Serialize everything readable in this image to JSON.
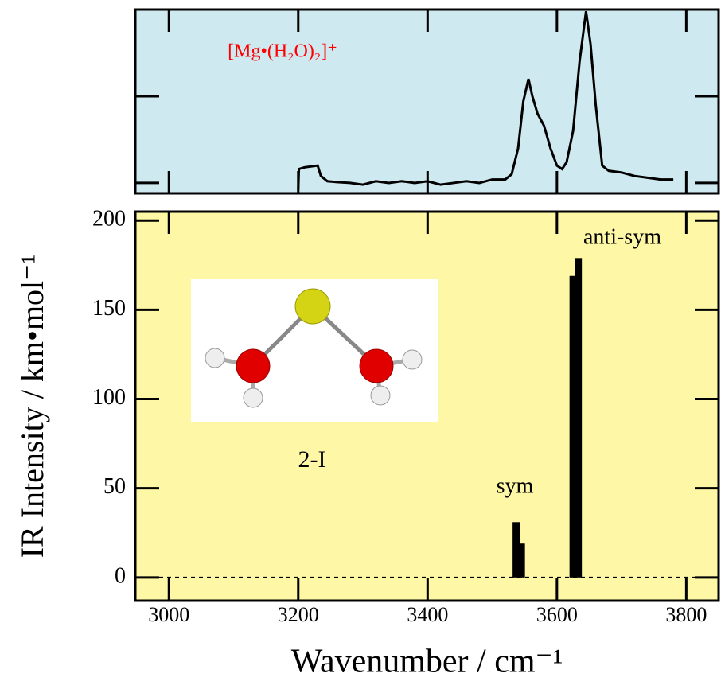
{
  "chart_data": [
    {
      "type": "line",
      "annotation": "[Mg•(H₂O)₂]⁺",
      "annotation_color": "#ff0000",
      "background": "#cfe9f0",
      "x": [
        3200,
        3201,
        3210,
        3230,
        3235,
        3245,
        3260,
        3280,
        3300,
        3320,
        3340,
        3360,
        3380,
        3400,
        3420,
        3440,
        3460,
        3480,
        3500,
        3520,
        3530,
        3540,
        3548,
        3556,
        3562,
        3570,
        3580,
        3590,
        3600,
        3608,
        3615,
        3625,
        3635,
        3645,
        3652,
        3660,
        3670,
        3680,
        3700,
        3720,
        3740,
        3760,
        3780
      ],
      "values": [
        -0.04,
        0.08,
        0.09,
        0.1,
        0.04,
        0.01,
        0.005,
        0.0,
        -0.01,
        0.01,
        0.0,
        0.01,
        0.0,
        0.01,
        -0.01,
        0.0,
        0.01,
        0.0,
        0.02,
        0.02,
        0.05,
        0.2,
        0.47,
        0.6,
        0.5,
        0.4,
        0.33,
        0.2,
        0.1,
        0.08,
        0.12,
        0.3,
        0.7,
        0.99,
        0.8,
        0.45,
        0.1,
        0.07,
        0.06,
        0.04,
        0.03,
        0.02,
        0.02
      ],
      "color": "#000000",
      "xlim": [
        2948,
        3850
      ],
      "xticks": [
        3000,
        3200,
        3400,
        3600,
        3800
      ],
      "ylim": [
        -0.06,
        1.0
      ],
      "yticks": [
        0,
        0.5
      ]
    },
    {
      "type": "bar",
      "background": "#fdf7a6",
      "xlabel": "Wavenumber / cm⁻¹",
      "ylabel": "IR Intensity / km•mol⁻¹",
      "x": [
        3537,
        3545,
        3625,
        3633
      ],
      "values": [
        31,
        19,
        169,
        179
      ],
      "color": "#000000",
      "xlim": [
        2948,
        3850
      ],
      "xticks": [
        3000,
        3200,
        3400,
        3600,
        3800
      ],
      "ylim": [
        -13,
        205
      ],
      "yticks": [
        0,
        50,
        100,
        150,
        200
      ],
      "zero_line": true,
      "annotations": [
        "sym",
        "anti-sym"
      ],
      "structure_label": "2-I"
    }
  ]
}
